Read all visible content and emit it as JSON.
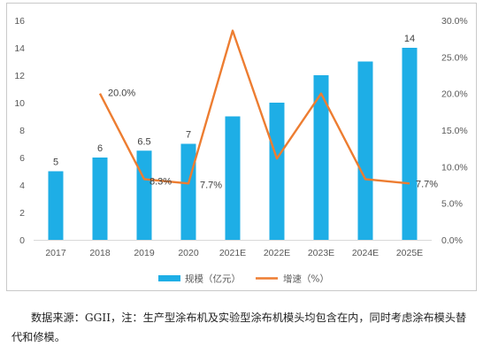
{
  "chart_data": {
    "type": "bar+line",
    "categories": [
      "2017",
      "2018",
      "2019",
      "2020",
      "2021E",
      "2022E",
      "2023E",
      "2024E",
      "2025E"
    ],
    "series": [
      {
        "name": "规模（亿元）",
        "type": "bar",
        "axis": "left",
        "color": "#1eaee6",
        "values": [
          5,
          6,
          6.5,
          7,
          9,
          10,
          12,
          13,
          14
        ],
        "labels": [
          "5",
          "6",
          "6.5",
          "7",
          "",
          "",
          "",
          "",
          "14"
        ]
      },
      {
        "name": "增速（%）",
        "type": "line",
        "axis": "right",
        "color": "#ed7d31",
        "values": [
          null,
          20.0,
          8.3,
          7.7,
          28.6,
          11.1,
          20.0,
          8.3,
          7.7
        ],
        "labels": [
          "",
          "20.0%",
          "8.3%",
          "7.7%",
          "",
          "",
          "",
          "",
          "7.7%"
        ]
      }
    ],
    "y_left": {
      "min": 0,
      "max": 16,
      "step": 2,
      "ticks": [
        "0",
        "2",
        "4",
        "6",
        "8",
        "10",
        "12",
        "14",
        "16"
      ]
    },
    "y_right": {
      "min": 0,
      "max": 30,
      "step": 5,
      "ticks": [
        "0.0%",
        "5.0%",
        "10.0%",
        "15.0%",
        "20.0%",
        "25.0%",
        "30.0%"
      ]
    },
    "grid": false,
    "legend": "bottom-center"
  },
  "footnote": "数据来源：GGII，注：生产型涂布机及实验型涂布机模头均包含在内，同时考虑涂布模头替代和修模。"
}
